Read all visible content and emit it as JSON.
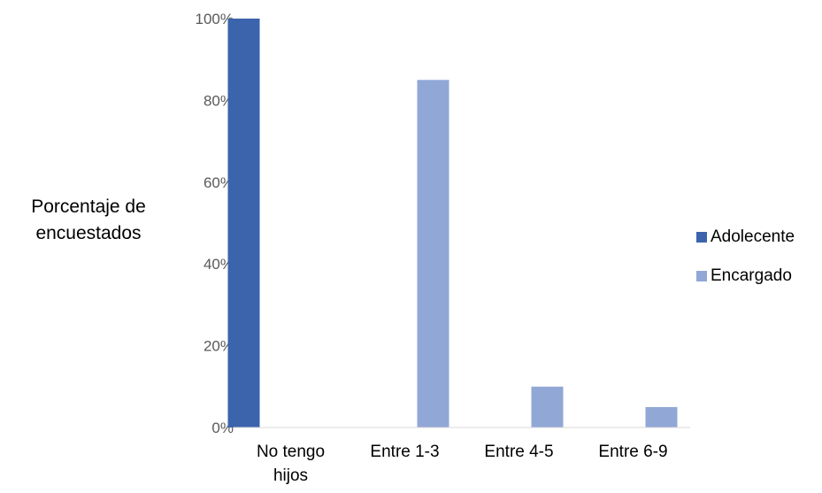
{
  "chart_data": {
    "type": "bar",
    "categories": [
      "No tengo\nhijos",
      "Entre 1-3",
      "Entre 4-5",
      "Entre 6-9"
    ],
    "series": [
      {
        "name": "Adolecente",
        "color": "#3B64AD",
        "values": [
          100,
          0,
          0,
          0
        ]
      },
      {
        "name": "Encargado",
        "color": "#91A7D6",
        "values": [
          0,
          85,
          10,
          5
        ]
      }
    ],
    "title": "",
    "ylabel": "Porcentaje  de\nencuestados",
    "xlabel": "",
    "ylim": [
      0,
      100
    ],
    "yticks": [
      "0%",
      "20%",
      "40%",
      "60%",
      "80%",
      "100%"
    ],
    "grid": false,
    "legend_position": "right"
  }
}
